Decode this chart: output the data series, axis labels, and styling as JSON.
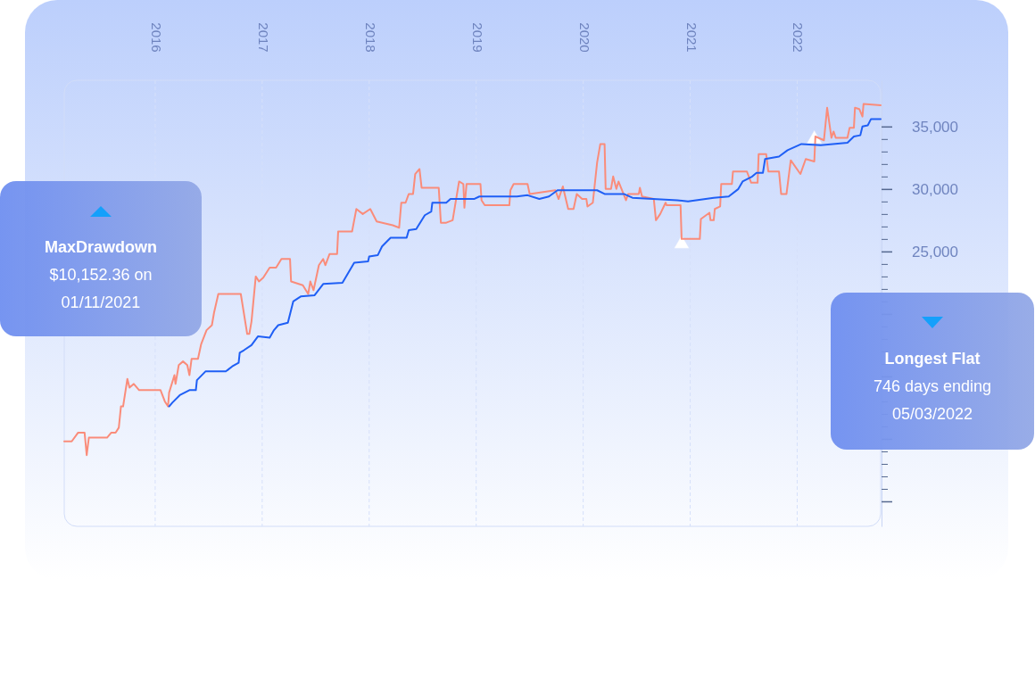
{
  "chart_data": {
    "type": "line",
    "xlim": [
      2015.15,
      2022.78
    ],
    "xticks": [
      2016,
      2017,
      2018,
      2019,
      2020,
      2021,
      2022
    ],
    "ylim": [
      3000,
      38700
    ],
    "yticks": [
      {
        "value": 5000,
        "label": null
      },
      {
        "value": 6000,
        "label": null
      },
      {
        "value": 7000,
        "label": null
      },
      {
        "value": 8000,
        "label": null
      },
      {
        "value": 9000,
        "label": null
      },
      {
        "value": 10000,
        "label": null
      },
      {
        "value": 11000,
        "label": null
      },
      {
        "value": 12000,
        "label": null
      },
      {
        "value": 13000,
        "label": null
      },
      {
        "value": 14000,
        "label": null
      },
      {
        "value": 15000,
        "label": null
      },
      {
        "value": 16000,
        "label": null
      },
      {
        "value": 17000,
        "label": null
      },
      {
        "value": 18000,
        "label": null
      },
      {
        "value": 19000,
        "label": null
      },
      {
        "value": 20000,
        "label": null
      },
      {
        "value": 21000,
        "label": null
      },
      {
        "value": 22000,
        "label": null
      },
      {
        "value": 23000,
        "label": null
      },
      {
        "value": 24000,
        "label": null
      },
      {
        "value": 25000,
        "label": "25,000"
      },
      {
        "value": 26000,
        "label": null
      },
      {
        "value": 27000,
        "label": null
      },
      {
        "value": 28000,
        "label": null
      },
      {
        "value": 29000,
        "label": null
      },
      {
        "value": 30000,
        "label": "30,000"
      },
      {
        "value": 31000,
        "label": null
      },
      {
        "value": 32000,
        "label": null
      },
      {
        "value": 33000,
        "label": null
      },
      {
        "value": 34000,
        "label": null
      },
      {
        "value": 35000,
        "label": "35,000"
      }
    ],
    "grid": "x",
    "series": [
      {
        "color": "#fa8c7a",
        "x": [
          2015.15,
          2015.22,
          2015.28,
          2015.34,
          2015.36,
          2015.38,
          2015.55,
          2015.59,
          2015.63,
          2015.66,
          2015.68,
          2015.7,
          2015.74,
          2015.76,
          2015.8,
          2015.85,
          2016.05,
          2016.09,
          2016.12,
          2016.13,
          2016.18,
          2016.19,
          2016.22,
          2016.26,
          2016.3,
          2016.32,
          2016.34,
          2016.4,
          2016.43,
          2016.48,
          2016.53,
          2016.55,
          2016.59,
          2016.8,
          2016.86,
          2016.88,
          2016.9,
          2016.94,
          2016.97,
          2017.01,
          2017.07,
          2017.13,
          2017.18,
          2017.26,
          2017.27,
          2017.38,
          2017.43,
          2017.45,
          2017.48,
          2017.53,
          2017.57,
          2017.59,
          2017.63,
          2017.7,
          2017.71,
          2017.84,
          2017.88,
          2017.94,
          2018.01,
          2018.07,
          2018.22,
          2018.28,
          2018.3,
          2018.34,
          2018.37,
          2018.41,
          2018.43,
          2018.47,
          2018.49,
          2018.65,
          2018.67,
          2018.72,
          2018.78,
          2018.84,
          2018.88,
          2018.89,
          2018.91,
          2019.04,
          2019.05,
          2019.08,
          2019.31,
          2019.32,
          2019.35,
          2019.48,
          2019.5,
          2019.74,
          2019.77,
          2019.81,
          2019.86,
          2019.91,
          2019.94,
          2019.99,
          2020.03,
          2020.04,
          2020.09,
          2020.13,
          2020.16,
          2020.2,
          2020.21,
          2020.26,
          2020.28,
          2020.31,
          2020.33,
          2020.4,
          2020.42,
          2020.52,
          2020.53,
          2020.55,
          2020.66,
          2020.68,
          2020.72,
          2020.77,
          2020.78,
          2020.91,
          2020.92,
          2021.09,
          2021.1,
          2021.18,
          2021.19,
          2021.22,
          2021.23,
          2021.28,
          2021.29,
          2021.39,
          2021.4,
          2021.53,
          2021.57,
          2021.63,
          2021.64,
          2021.71,
          2021.73,
          2021.83,
          2021.85,
          2021.9,
          2021.94,
          2022.03,
          2022.08,
          2022.16,
          2022.17,
          2022.25,
          2022.28,
          2022.32,
          2022.34,
          2022.36,
          2022.47,
          2022.49,
          2022.53,
          2022.54,
          2022.58,
          2022.61,
          2022.62,
          2022.78
        ],
        "values": [
          9800,
          9800,
          10500,
          10500,
          8700,
          10100,
          10100,
          10500,
          10500,
          10900,
          12600,
          12600,
          14800,
          14100,
          14400,
          13900,
          13900,
          13000,
          12600,
          13700,
          15100,
          14400,
          15900,
          16200,
          15900,
          15100,
          16400,
          16400,
          17600,
          18700,
          19100,
          20100,
          21600,
          21600,
          18400,
          18400,
          19400,
          23000,
          22600,
          22900,
          23700,
          23700,
          24400,
          24400,
          22600,
          22300,
          21600,
          22600,
          21900,
          23900,
          24400,
          23900,
          24800,
          24800,
          26600,
          26600,
          28400,
          28000,
          28400,
          27400,
          27100,
          26900,
          28900,
          28900,
          29600,
          29600,
          31200,
          31600,
          30100,
          30100,
          27300,
          27300,
          27500,
          30600,
          30400,
          28500,
          30400,
          30400,
          29100,
          28700,
          28700,
          29900,
          30400,
          30400,
          29600,
          29900,
          29200,
          30200,
          28400,
          28400,
          29600,
          29200,
          29200,
          28600,
          28900,
          32100,
          33600,
          33600,
          30000,
          30000,
          31000,
          30000,
          30600,
          29100,
          29600,
          29600,
          30100,
          29400,
          29200,
          27500,
          28000,
          28900,
          28700,
          28700,
          26000,
          26000,
          27600,
          28100,
          27500,
          27500,
          28400,
          28600,
          30400,
          30400,
          31400,
          31400,
          30500,
          30500,
          32800,
          32800,
          31400,
          31400,
          29600,
          29600,
          32300,
          31200,
          32400,
          32200,
          34200,
          33900,
          36500,
          34100,
          34600,
          34100,
          34100,
          34900,
          34900,
          36500,
          36400,
          35800,
          36800,
          36700
        ]
      },
      {
        "color": "#1f5ff5",
        "x": [
          2016.13,
          2016.16,
          2016.23,
          2016.32,
          2016.38,
          2016.39,
          2016.47,
          2016.66,
          2016.72,
          2016.78,
          2016.79,
          2016.83,
          2016.9,
          2016.96,
          2017.07,
          2017.11,
          2017.15,
          2017.24,
          2017.29,
          2017.36,
          2017.49,
          2017.57,
          2017.75,
          2017.86,
          2017.99,
          2018.0,
          2018.08,
          2018.12,
          2018.2,
          2018.35,
          2018.37,
          2018.44,
          2018.52,
          2018.58,
          2018.59,
          2018.72,
          2018.76,
          2018.98,
          2019.03,
          2019.38,
          2019.48,
          2019.59,
          2019.68,
          2019.76,
          2020.13,
          2020.2,
          2020.38,
          2020.46,
          2020.88,
          2020.98,
          2021.22,
          2021.36,
          2021.45,
          2021.49,
          2021.58,
          2021.62,
          2021.68,
          2021.7,
          2021.83,
          2021.91,
          2022.04,
          2022.22,
          2022.47,
          2022.53,
          2022.59,
          2022.61,
          2022.66,
          2022.69,
          2022.78
        ],
        "values": [
          12600,
          12900,
          13500,
          13900,
          13900,
          14700,
          15400,
          15400,
          15800,
          16100,
          16900,
          17100,
          17500,
          18200,
          18100,
          18700,
          19100,
          19300,
          21000,
          21400,
          21500,
          22400,
          22500,
          24100,
          24200,
          24600,
          24700,
          25400,
          26100,
          26100,
          26700,
          26800,
          27900,
          28200,
          28900,
          28900,
          29200,
          29200,
          29400,
          29400,
          29500,
          29200,
          29400,
          29900,
          29900,
          29600,
          29600,
          29300,
          29100,
          29000,
          29300,
          29400,
          30000,
          30600,
          31000,
          31300,
          31300,
          32400,
          32600,
          33100,
          33600,
          33500,
          33700,
          34200,
          34300,
          35000,
          35100,
          35600,
          35600
        ]
      },
      {
        "type": "scatter",
        "color": "#ffffff",
        "marker": "triangle",
        "x": [
          2020.92,
          2022.16
        ],
        "values": [
          25600,
          34000
        ]
      }
    ],
    "annotations": [
      "MaxDrawdown\n$10,152.36 on\n01/11/2021",
      "Longest Flat\n746 days ending\n05/03/2022"
    ]
  }
}
